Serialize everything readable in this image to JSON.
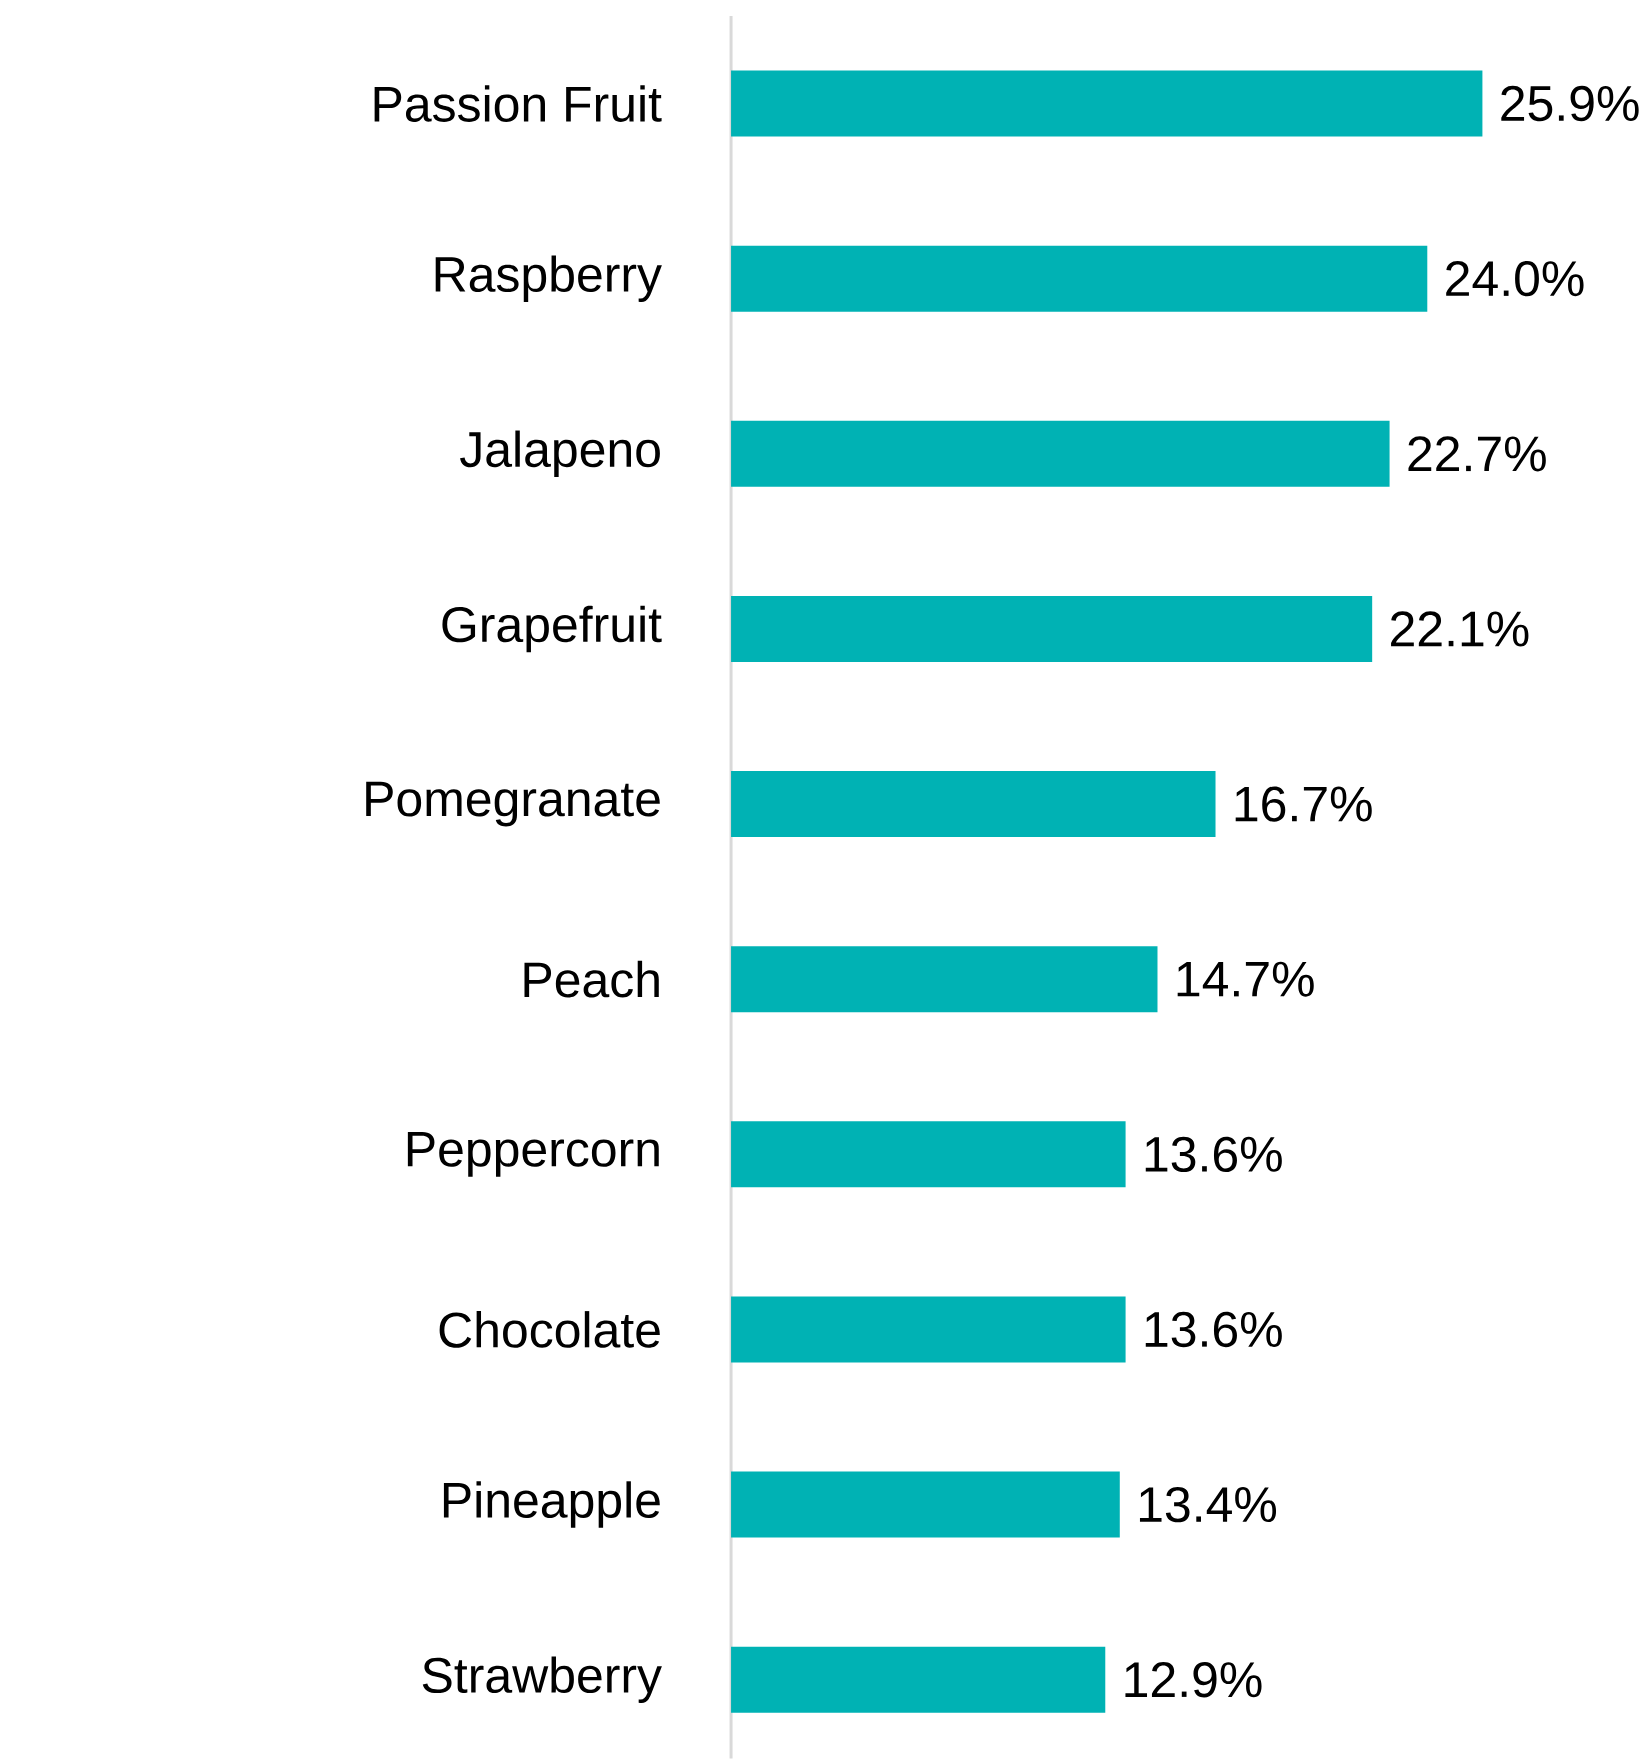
{
  "chart_data": {
    "type": "bar",
    "orientation": "horizontal",
    "categories": [
      "Passion Fruit",
      "Raspberry",
      "Jalapeno",
      "Grapefruit",
      "Pomegranate",
      "Peach",
      "Peppercorn",
      "Chocolate",
      "Pineapple",
      "Strawberry"
    ],
    "values": [
      25.9,
      24.0,
      22.7,
      22.1,
      16.7,
      14.7,
      13.6,
      13.6,
      13.4,
      12.9
    ],
    "value_labels": [
      "25.9%",
      "24.0%",
      "22.7%",
      "22.1%",
      "16.7%",
      "14.7%",
      "13.6%",
      "13.6%",
      "13.4%",
      "12.9%"
    ],
    "color": "#00b2b4"
  }
}
